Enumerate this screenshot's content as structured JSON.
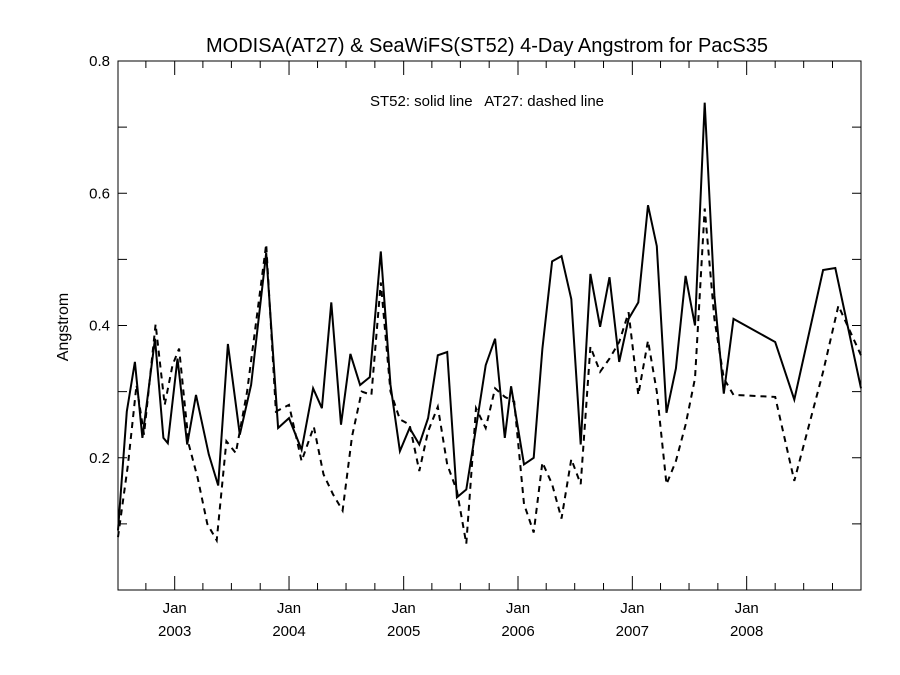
{
  "chart_data": {
    "type": "line",
    "title": "MODISA(AT27) & SeaWiFS(ST52) 4-Day Angstrom for PacS35",
    "annotation": "ST52: solid line   AT27: dashed line",
    "ylabel": "Angstrom",
    "xlabel": "",
    "xlim": [
      "2002-07-04",
      "2008-12-31"
    ],
    "ylim": [
      0.0,
      0.8
    ],
    "y_ticks": [
      {
        "value": 0.2,
        "label": "0.2"
      },
      {
        "value": 0.4,
        "label": "0.4"
      },
      {
        "value": 0.6,
        "label": "0.6"
      },
      {
        "value": 0.8,
        "label": "0.8"
      }
    ],
    "y_minor_step": 0.1,
    "x_ticks": [
      {
        "date": "2003-01-01",
        "month": "Jan",
        "year": "2003"
      },
      {
        "date": "2004-01-01",
        "month": "Jan",
        "year": "2004"
      },
      {
        "date": "2005-01-01",
        "month": "Jan",
        "year": "2005"
      },
      {
        "date": "2006-01-01",
        "month": "Jan",
        "year": "2006"
      },
      {
        "date": "2007-01-01",
        "month": "Jan",
        "year": "2007"
      },
      {
        "date": "2008-01-01",
        "month": "Jan",
        "year": "2008"
      }
    ],
    "grid": false,
    "series": [
      {
        "style": "solid",
        "points": [
          [
            "2002-07-04",
            0.09
          ],
          [
            "2002-08-01",
            0.27
          ],
          [
            "2002-08-27",
            0.345
          ],
          [
            "2002-09-20",
            0.23
          ],
          [
            "2002-10-30",
            0.38
          ],
          [
            "2002-11-26",
            0.23
          ],
          [
            "2002-12-10",
            0.222
          ],
          [
            "2003-01-10",
            0.35
          ],
          [
            "2003-02-10",
            0.22
          ],
          [
            "2003-03-10",
            0.295
          ],
          [
            "2003-04-20",
            0.205
          ],
          [
            "2003-05-20",
            0.158
          ],
          [
            "2003-06-20",
            0.372
          ],
          [
            "2003-07-28",
            0.235
          ],
          [
            "2003-09-02",
            0.31
          ],
          [
            "2003-10-20",
            0.51
          ],
          [
            "2003-11-27",
            0.245
          ],
          [
            "2004-01-01",
            0.26
          ],
          [
            "2004-02-10",
            0.212
          ],
          [
            "2004-03-18",
            0.305
          ],
          [
            "2004-04-15",
            0.275
          ],
          [
            "2004-05-15",
            0.435
          ],
          [
            "2004-06-15",
            0.25
          ],
          [
            "2004-07-15",
            0.357
          ],
          [
            "2004-08-15",
            0.31
          ],
          [
            "2004-09-15",
            0.322
          ],
          [
            "2004-10-20",
            0.512
          ],
          [
            "2004-11-20",
            0.31
          ],
          [
            "2004-12-20",
            0.21
          ],
          [
            "2005-01-20",
            0.245
          ],
          [
            "2005-02-20",
            0.22
          ],
          [
            "2005-03-20",
            0.26
          ],
          [
            "2005-04-20",
            0.355
          ],
          [
            "2005-05-20",
            0.36
          ],
          [
            "2005-06-20",
            0.14
          ],
          [
            "2005-07-20",
            0.152
          ],
          [
            "2005-08-20",
            0.245
          ],
          [
            "2005-09-20",
            0.34
          ],
          [
            "2005-10-20",
            0.38
          ],
          [
            "2005-11-20",
            0.23
          ],
          [
            "2005-12-10",
            0.308
          ],
          [
            "2006-01-20",
            0.19
          ],
          [
            "2006-02-20",
            0.2
          ],
          [
            "2006-03-20",
            0.365
          ],
          [
            "2006-04-20",
            0.497
          ],
          [
            "2006-05-20",
            0.505
          ],
          [
            "2006-06-20",
            0.44
          ],
          [
            "2006-07-20",
            0.22
          ],
          [
            "2006-08-20",
            0.478
          ],
          [
            "2006-09-20",
            0.398
          ],
          [
            "2006-10-20",
            0.473
          ],
          [
            "2006-11-20",
            0.345
          ],
          [
            "2006-12-20",
            0.41
          ],
          [
            "2007-01-20",
            0.435
          ],
          [
            "2007-02-20",
            0.582
          ],
          [
            "2007-03-20",
            0.52
          ],
          [
            "2007-04-20",
            0.268
          ],
          [
            "2007-05-20",
            0.335
          ],
          [
            "2007-06-20",
            0.475
          ],
          [
            "2007-07-20",
            0.4
          ],
          [
            "2007-08-20",
            0.737
          ],
          [
            "2007-09-20",
            0.445
          ],
          [
            "2007-10-20",
            0.297
          ],
          [
            "2007-11-20",
            0.41
          ],
          [
            "2008-04-01",
            0.375
          ],
          [
            "2008-06-01",
            0.288
          ],
          [
            "2008-09-01",
            0.484
          ],
          [
            "2008-10-10",
            0.487
          ],
          [
            "2008-12-31",
            0.305
          ]
        ]
      },
      {
        "style": "dashed",
        "points": [
          [
            "2002-07-04",
            0.08
          ],
          [
            "2002-08-05",
            0.19
          ],
          [
            "2002-09-01",
            0.31
          ],
          [
            "2002-09-25",
            0.235
          ],
          [
            "2002-11-01",
            0.402
          ],
          [
            "2002-11-30",
            0.28
          ],
          [
            "2002-12-25",
            0.34
          ],
          [
            "2003-01-15",
            0.365
          ],
          [
            "2003-02-15",
            0.22
          ],
          [
            "2003-03-15",
            0.17
          ],
          [
            "2003-04-15",
            0.1
          ],
          [
            "2003-05-15",
            0.075
          ],
          [
            "2003-06-15",
            0.225
          ],
          [
            "2003-07-15",
            0.207
          ],
          [
            "2003-08-20",
            0.3
          ],
          [
            "2003-10-20",
            0.523
          ],
          [
            "2003-11-20",
            0.27
          ],
          [
            "2004-01-01",
            0.28
          ],
          [
            "2004-02-10",
            0.195
          ],
          [
            "2004-03-20",
            0.247
          ],
          [
            "2004-04-20",
            0.175
          ],
          [
            "2004-05-20",
            0.145
          ],
          [
            "2004-06-20",
            0.12
          ],
          [
            "2004-07-20",
            0.232
          ],
          [
            "2004-08-20",
            0.3
          ],
          [
            "2004-09-20",
            0.295
          ],
          [
            "2004-10-20",
            0.465
          ],
          [
            "2004-11-20",
            0.3
          ],
          [
            "2004-12-20",
            0.258
          ],
          [
            "2005-01-20",
            0.25
          ],
          [
            "2005-02-20",
            0.18
          ],
          [
            "2005-03-20",
            0.24
          ],
          [
            "2005-04-20",
            0.277
          ],
          [
            "2005-05-20",
            0.19
          ],
          [
            "2005-06-20",
            0.15
          ],
          [
            "2005-07-20",
            0.07
          ],
          [
            "2005-08-20",
            0.275
          ],
          [
            "2005-09-20",
            0.245
          ],
          [
            "2005-10-20",
            0.305
          ],
          [
            "2005-11-20",
            0.292
          ],
          [
            "2005-12-20",
            0.285
          ],
          [
            "2006-01-20",
            0.13
          ],
          [
            "2006-02-20",
            0.087
          ],
          [
            "2006-03-20",
            0.193
          ],
          [
            "2006-04-20",
            0.16
          ],
          [
            "2006-05-20",
            0.108
          ],
          [
            "2006-06-20",
            0.198
          ],
          [
            "2006-07-20",
            0.16
          ],
          [
            "2006-08-20",
            0.368
          ],
          [
            "2006-09-20",
            0.33
          ],
          [
            "2006-10-20",
            0.35
          ],
          [
            "2006-11-20",
            0.375
          ],
          [
            "2006-12-20",
            0.42
          ],
          [
            "2007-01-20",
            0.295
          ],
          [
            "2007-02-20",
            0.377
          ],
          [
            "2007-03-20",
            0.3
          ],
          [
            "2007-04-20",
            0.16
          ],
          [
            "2007-05-20",
            0.195
          ],
          [
            "2007-06-20",
            0.25
          ],
          [
            "2007-07-20",
            0.32
          ],
          [
            "2007-08-20",
            0.577
          ],
          [
            "2007-09-20",
            0.41
          ],
          [
            "2007-10-20",
            0.32
          ],
          [
            "2007-11-20",
            0.295
          ],
          [
            "2008-04-01",
            0.292
          ],
          [
            "2008-06-01",
            0.165
          ],
          [
            "2008-09-01",
            0.33
          ],
          [
            "2008-10-20",
            0.43
          ],
          [
            "2008-12-31",
            0.355
          ]
        ]
      }
    ]
  }
}
